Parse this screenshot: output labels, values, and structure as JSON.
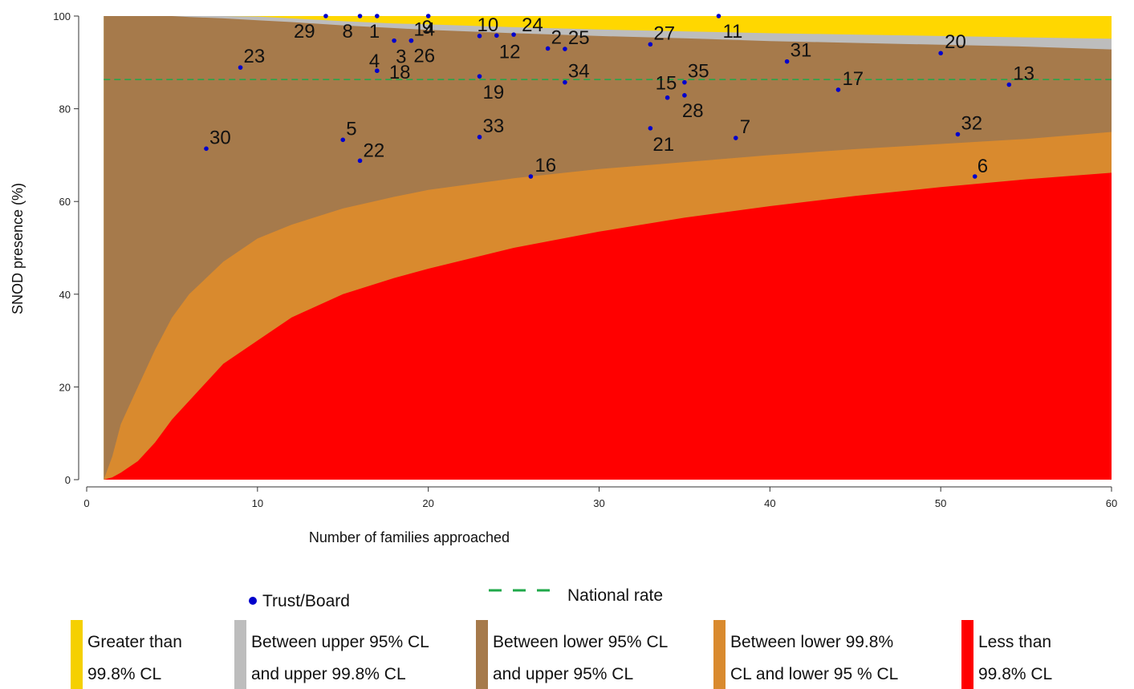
{
  "chart_data": {
    "type": "area",
    "title": "",
    "xlabel": "Number of families approached",
    "ylabel": "SNOD presence (%)",
    "xlim": [
      0,
      60
    ],
    "ylim": [
      0,
      100
    ],
    "x_ticks": [
      0,
      10,
      20,
      30,
      40,
      50,
      60
    ],
    "y_ticks": [
      0,
      20,
      40,
      60,
      80,
      100
    ],
    "grid": false,
    "national_rate": 86.3,
    "funnel_n": [
      1,
      1.5,
      2,
      3,
      4,
      5,
      6,
      8,
      10,
      12,
      15,
      18,
      20,
      25,
      30,
      35,
      40,
      45,
      50,
      55,
      60
    ],
    "bands": [
      {
        "name": "Greater than 99.8% CL",
        "color": "#FFD700",
        "upper": [
          100,
          100,
          100,
          100,
          100,
          100,
          100,
          100,
          100,
          100,
          100,
          100,
          100,
          100,
          100,
          100,
          100,
          100,
          100,
          100,
          100
        ]
      },
      {
        "name": "Between upper 95% CL and upper 99.8% CL",
        "color": "#BDBDBD",
        "upper": [
          100,
          100,
          100,
          100,
          100,
          100,
          100,
          100,
          99.9,
          99.5,
          98.9,
          98.4,
          98.2,
          97.6,
          97.1,
          96.7,
          96.3,
          96.0,
          95.7,
          95.4,
          95.1
        ]
      },
      {
        "name": "Between lower 95% CL and upper 95% CL",
        "color": "#A67A4B",
        "upper": [
          100,
          100,
          100,
          100,
          100,
          100,
          99.8,
          99.5,
          99.1,
          98.7,
          98.0,
          97.4,
          97.0,
          96.3,
          95.7,
          95.2,
          94.6,
          94.2,
          93.8,
          93.4,
          92.8
        ]
      },
      {
        "name": "Between lower 99.8% CL and lower 95 % CL",
        "color": "#D98A2E",
        "upper": [
          0,
          5,
          12,
          20,
          28,
          35,
          40,
          47,
          52,
          55,
          58.5,
          61,
          62.5,
          65,
          67,
          68.5,
          70,
          71.3,
          72.4,
          73.5,
          75
        ]
      },
      {
        "name": "Less than 99.8% CL",
        "color": "#FF0000",
        "upper": [
          0,
          0.5,
          1.5,
          4,
          8,
          13,
          17,
          25,
          30,
          35,
          40,
          43.5,
          45.5,
          50,
          53.5,
          56.5,
          59,
          61.2,
          63.1,
          64.8,
          66.2
        ]
      }
    ],
    "series": [
      {
        "name": "Trust/Board",
        "color": "#0000CC",
        "points": [
          {
            "label": "1",
            "x": 17,
            "y": 100
          },
          {
            "label": "2",
            "x": 27,
            "y": 93
          },
          {
            "label": "3",
            "x": 18,
            "y": 94.7
          },
          {
            "label": "4",
            "x": 17,
            "y": 88.2
          },
          {
            "label": "5",
            "x": 15,
            "y": 73.3
          },
          {
            "label": "6",
            "x": 52,
            "y": 65.4
          },
          {
            "label": "7",
            "x": 38,
            "y": 73.7
          },
          {
            "label": "8",
            "x": 16,
            "y": 100
          },
          {
            "label": "9",
            "x": 20,
            "y": 100
          },
          {
            "label": "10",
            "x": 23,
            "y": 95.7
          },
          {
            "label": "11",
            "x": 37,
            "y": 100
          },
          {
            "label": "12",
            "x": 24,
            "y": 95.8
          },
          {
            "label": "13",
            "x": 54,
            "y": 85.2
          },
          {
            "label": "14",
            "x": 19,
            "y": 94.7
          },
          {
            "label": "15",
            "x": 34,
            "y": 82.4
          },
          {
            "label": "16",
            "x": 26,
            "y": 65.4
          },
          {
            "label": "17",
            "x": 44,
            "y": 84.1
          },
          {
            "label": "18",
            "x": 17,
            "y": 88.2
          },
          {
            "label": "19",
            "x": 23,
            "y": 87
          },
          {
            "label": "20",
            "x": 50,
            "y": 92
          },
          {
            "label": "21",
            "x": 33,
            "y": 75.8
          },
          {
            "label": "22",
            "x": 16,
            "y": 68.8
          },
          {
            "label": "23",
            "x": 9,
            "y": 88.9
          },
          {
            "label": "24",
            "x": 25,
            "y": 96
          },
          {
            "label": "25",
            "x": 28,
            "y": 92.9
          },
          {
            "label": "26",
            "x": 19,
            "y": 94.7
          },
          {
            "label": "27",
            "x": 33,
            "y": 93.9
          },
          {
            "label": "28",
            "x": 35,
            "y": 82.9
          },
          {
            "label": "29",
            "x": 14,
            "y": 100
          },
          {
            "label": "30",
            "x": 7,
            "y": 71.4
          },
          {
            "label": "31",
            "x": 41,
            "y": 90.2
          },
          {
            "label": "32",
            "x": 51,
            "y": 74.5
          },
          {
            "label": "33",
            "x": 23,
            "y": 73.9
          },
          {
            "label": "34",
            "x": 28,
            "y": 85.7
          },
          {
            "label": "35",
            "x": 35,
            "y": 85.7
          }
        ]
      },
      {
        "name": "National rate",
        "color": "#1FA84A",
        "dash": true
      }
    ],
    "legend": {
      "placement": "bottom",
      "marker_entry": "Trust/Board",
      "line_entry": "National rate",
      "bands": [
        {
          "line1": "Greater than",
          "line2": "99.8% CL",
          "color": "#F5D000"
        },
        {
          "line1": "Between upper 95% CL",
          "line2": "and upper 99.8% CL",
          "color": "#BDBDBD"
        },
        {
          "line1": "Between lower 95% CL",
          "line2": "and upper 95% CL",
          "color": "#A67A4B"
        },
        {
          "line1": "Between lower 99.8%",
          "line2": "CL and lower 95 % CL",
          "color": "#D98A2E"
        },
        {
          "line1": "Less than",
          "line2": "99.8% CL",
          "color": "#FF0000"
        }
      ]
    }
  }
}
